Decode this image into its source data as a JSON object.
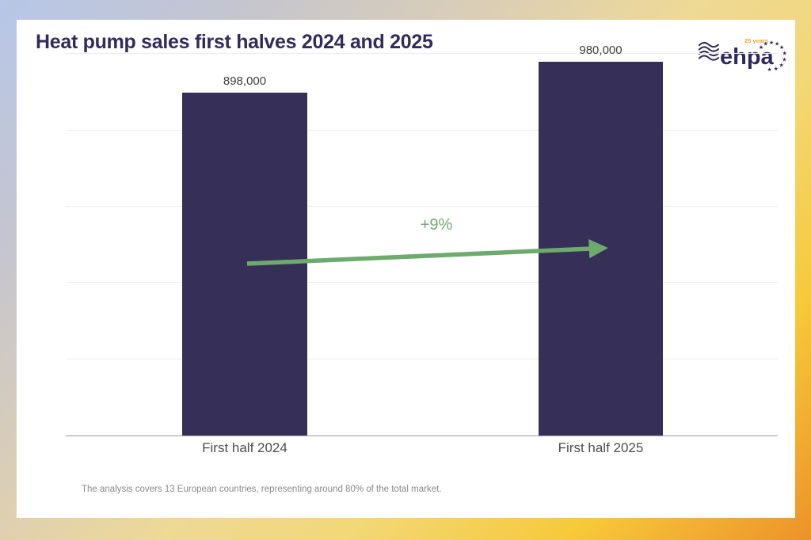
{
  "header": {
    "title": "Heat pump sales first halves 2024 and 2025",
    "logo": {
      "brand": "ehpa",
      "badge": "25 years"
    }
  },
  "footnote": {
    "text": "The analysis covers 13 European countries, representing around 80% of the total market."
  },
  "chart_data": {
    "type": "bar",
    "title": "Heat pump sales first halves 2024 and 2025",
    "categories": [
      "First half 2024",
      "First half 2025"
    ],
    "values": [
      898000,
      980000
    ],
    "value_labels": [
      "898,000",
      "980,000"
    ],
    "xlabel": "",
    "ylabel": "",
    "ylim": [
      0,
      1090000
    ],
    "gridline_interval": 200000,
    "grid": "horizontal-faint",
    "legend": "none",
    "annotations": [
      {
        "type": "growth-arrow",
        "text": "+9%",
        "from": "First half 2024",
        "to": "First half 2025"
      }
    ],
    "colors": {
      "bar": "#363059",
      "arrow": "#6cab6d",
      "title": "#322b5c",
      "value_label": "#3e3e3e",
      "category_label": "#4d4d4d",
      "footnote": "#898989",
      "logo_navy": "#2f2a5c",
      "logo_orange": "#f0a32f"
    }
  }
}
